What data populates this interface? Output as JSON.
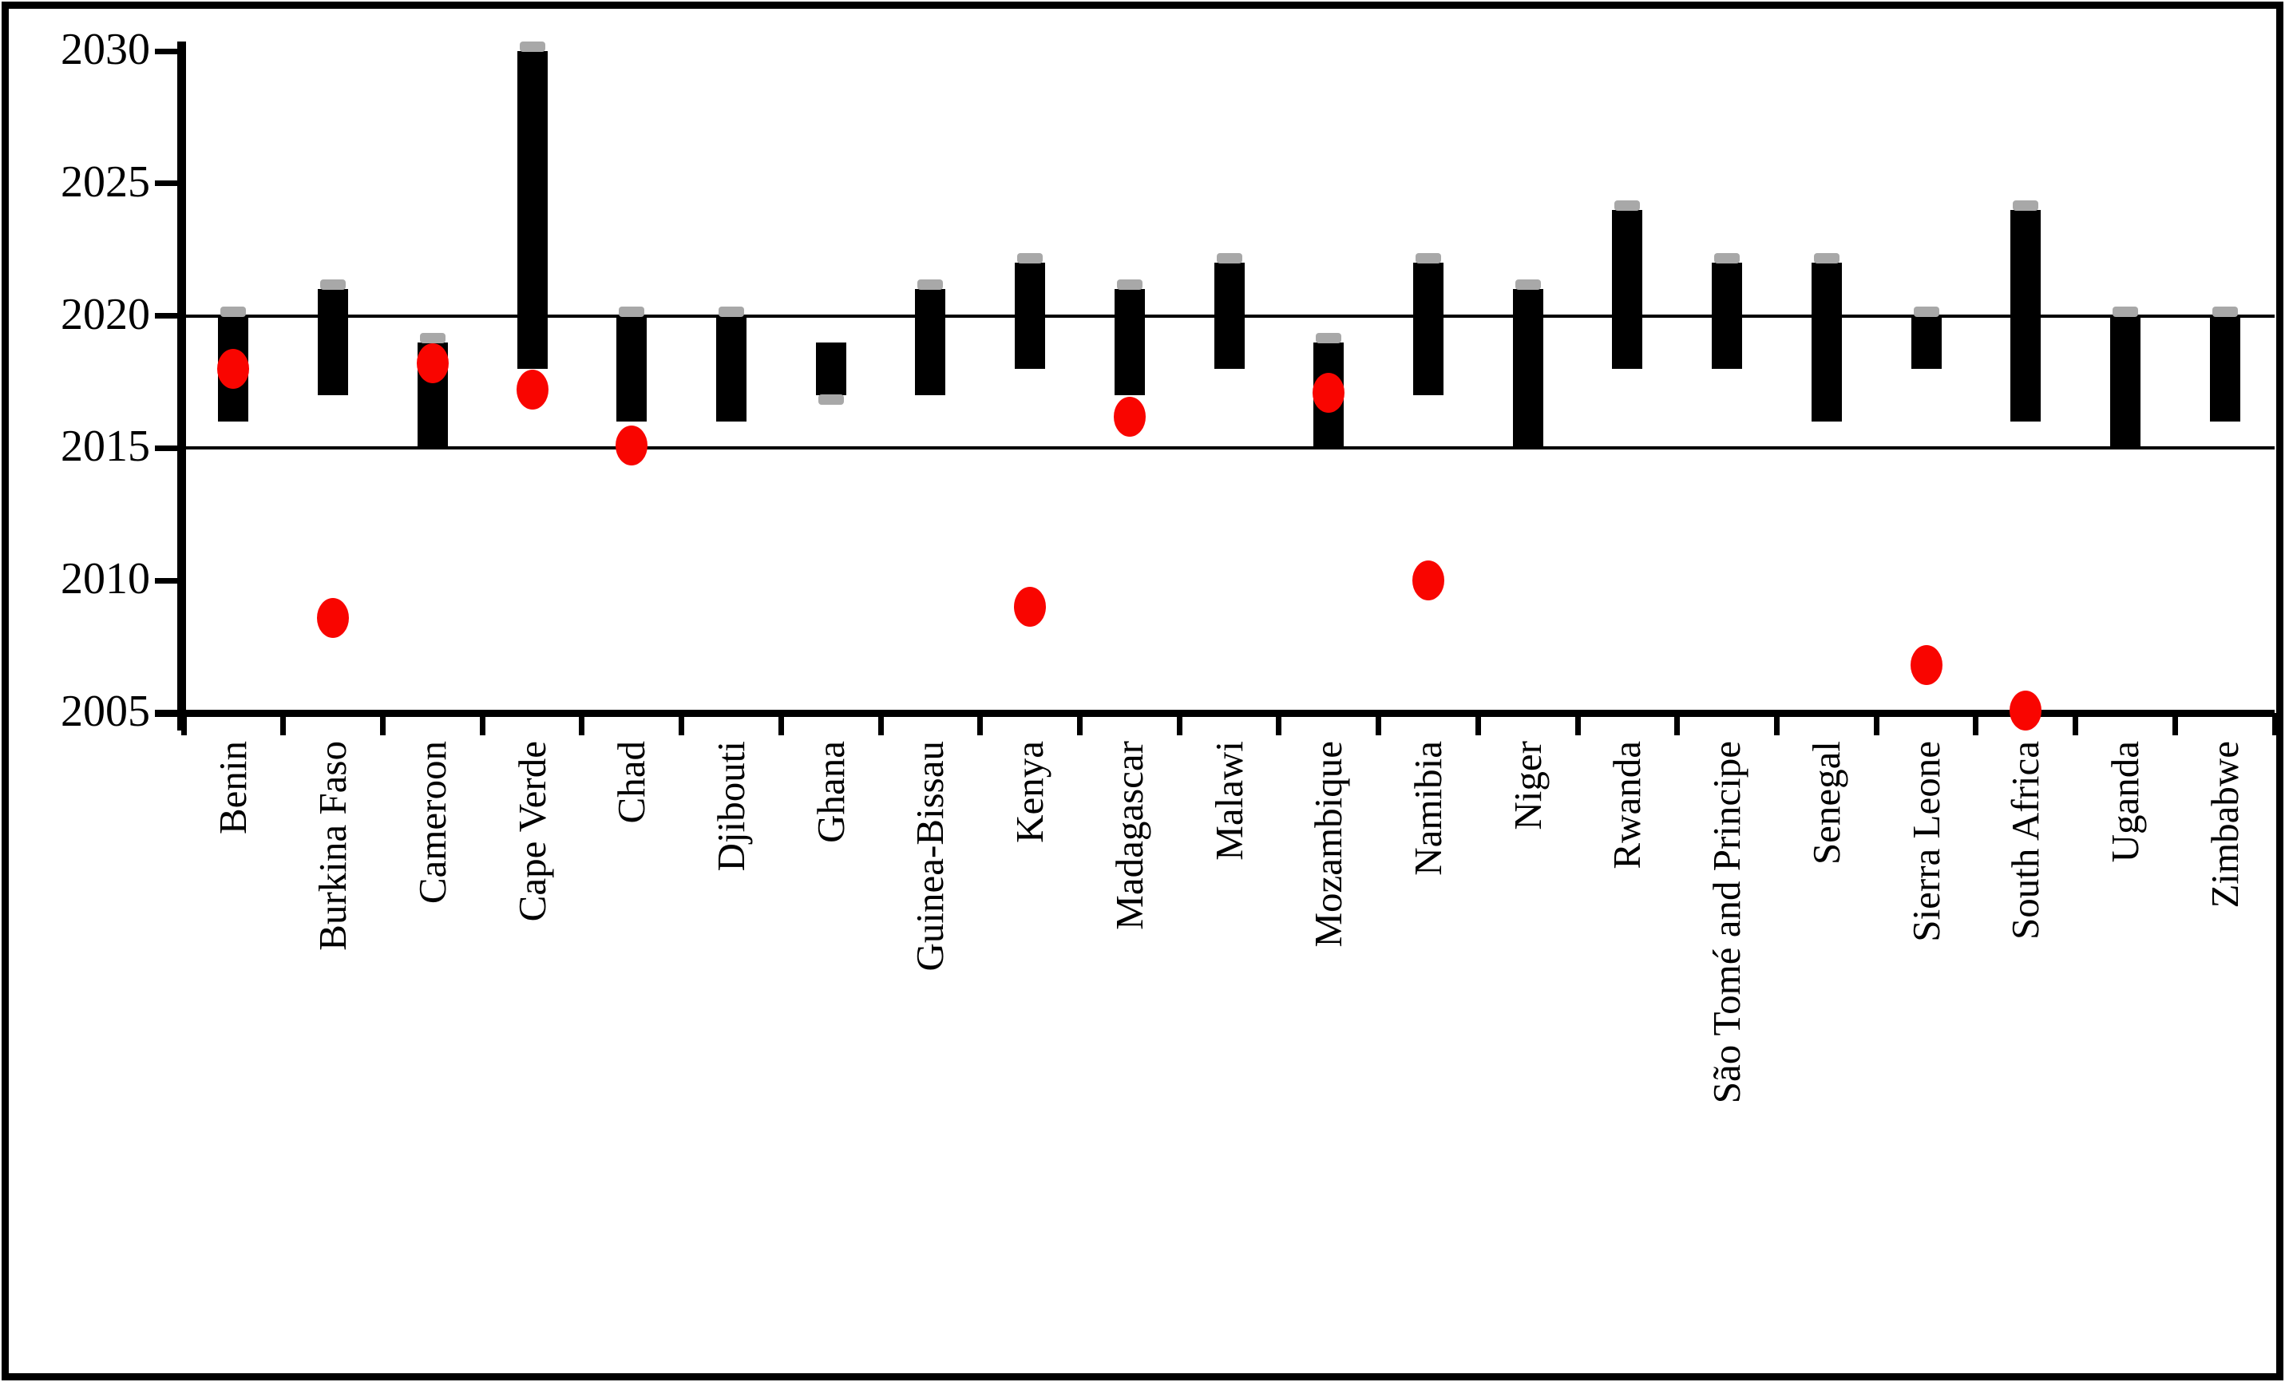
{
  "figure": {
    "background_color": "#ffffff",
    "border_color": "#000000",
    "bar_color": "#000000",
    "cap_color": "#a8a8a8",
    "dot_color": "#f90500"
  },
  "chart_data": {
    "type": "range-bar+scatter",
    "title": "",
    "xlabel": "",
    "ylabel": "",
    "ylim": [
      2005,
      2030
    ],
    "ytick_labels": [
      "2005",
      "2010",
      "2015",
      "2020",
      "2025",
      "2030"
    ],
    "ytick_values": [
      2005,
      2010,
      2015,
      2020,
      2025,
      2030
    ],
    "gridlines_at": [
      2015,
      2020
    ],
    "grid": "horizontal-partial",
    "legend_position": "none",
    "categories": [
      "Benin",
      "Burkina Faso",
      "Cameroon",
      "Cape Verde",
      "Chad",
      "Djibouti",
      "Ghana",
      "Guinea-Bissau",
      "Kenya",
      "Madagascar",
      "Malawi",
      "Mozambique",
      "Namibia",
      "Niger",
      "Rwanda",
      "São Tomé and Principe",
      "Senegal",
      "Sierra Leone",
      "South Africa",
      "Uganda",
      "Zimbabwe"
    ],
    "series": [
      {
        "name": "period-range-bar",
        "type": "range-bar",
        "color": "#000000",
        "ranges": [
          [
            2016,
            2020
          ],
          [
            2017,
            2021
          ],
          [
            2015,
            2019
          ],
          [
            2018,
            2030
          ],
          [
            2016,
            2020
          ],
          [
            2016,
            2020
          ],
          [
            2017,
            2019
          ],
          [
            2017,
            2021
          ],
          [
            2018,
            2022
          ],
          [
            2017,
            2021
          ],
          [
            2018,
            2022
          ],
          [
            2015,
            2019
          ],
          [
            2017,
            2022
          ],
          [
            2015,
            2021
          ],
          [
            2018,
            2024
          ],
          [
            2018,
            2022
          ],
          [
            2016,
            2022
          ],
          [
            2018,
            2020
          ],
          [
            2016,
            2024
          ],
          [
            2015,
            2020
          ],
          [
            2016,
            2020
          ]
        ]
      },
      {
        "name": "gray-end-cap",
        "type": "cap-marker",
        "color": "#a8a8a8",
        "position": [
          "top",
          "top",
          "top",
          "top",
          "top",
          "top",
          "bottom",
          "top",
          "top",
          "top",
          "top",
          "top",
          "top",
          "top",
          "top",
          "top",
          "top",
          "top",
          "top",
          "top",
          "top"
        ]
      },
      {
        "name": "red-dot",
        "type": "scatter",
        "color": "#f90500",
        "values": [
          2018,
          2008.6,
          2018.2,
          2017.2,
          2015.1,
          null,
          null,
          null,
          2009,
          2016.2,
          null,
          2017.1,
          2010,
          null,
          null,
          null,
          null,
          2006.8,
          2005.1,
          null,
          null
        ]
      }
    ]
  }
}
